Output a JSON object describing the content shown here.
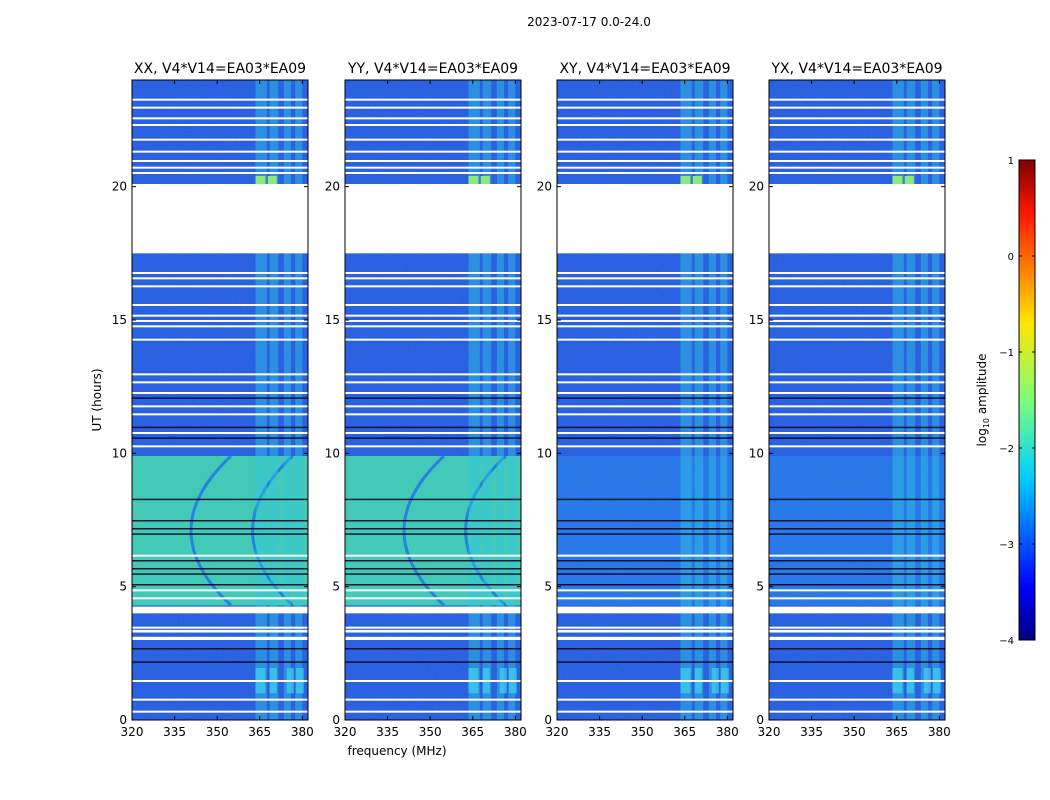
{
  "figure_title": "2023-07-17 0.0-24.0",
  "colors": {
    "background": "#ffffff",
    "frame": "#000000",
    "base_low": "#0a1fc8",
    "base_mid": "#1f5cf0",
    "band_bright": "#2ec8e0",
    "band_hot": "#6fe070",
    "bright_cyan": "#3fd4e8",
    "bright_green": "#8ee87a",
    "gap": "#ffffff",
    "dark_line": "#000014"
  },
  "chart_data": [
    {
      "type": "heatmap",
      "title": "XX, V4*V14=EA03*EA09",
      "xlabel": "",
      "ylabel": "UT (hours)",
      "xlim": [
        320,
        382
      ],
      "ylim": [
        0,
        24
      ],
      "x_ticks": [
        320,
        335,
        350,
        365,
        380
      ],
      "y_ticks": [
        0,
        5,
        10,
        15,
        20
      ],
      "bright_block_ut": [
        4.3,
        9.9
      ]
    },
    {
      "type": "heatmap",
      "title": "YY, V4*V14=EA03*EA09",
      "xlabel": "frequency (MHz)",
      "ylabel": "",
      "xlim": [
        320,
        382
      ],
      "ylim": [
        0,
        24
      ],
      "x_ticks": [
        320,
        335,
        350,
        365,
        380
      ],
      "y_ticks": [
        0,
        5,
        10,
        15,
        20
      ],
      "bright_block_ut": [
        4.3,
        9.9
      ]
    },
    {
      "type": "heatmap",
      "title": "XY, V4*V14=EA03*EA09",
      "xlabel": "",
      "ylabel": "",
      "xlim": [
        320,
        382
      ],
      "ylim": [
        0,
        24
      ],
      "x_ticks": [
        320,
        335,
        350,
        365,
        380
      ],
      "y_ticks": [
        0,
        5,
        10,
        15,
        20
      ],
      "bright_block_ut": [
        4.3,
        9.9
      ]
    },
    {
      "type": "heatmap",
      "title": "YX, V4*V14=EA03*EA09",
      "xlabel": "",
      "ylabel": "",
      "xlim": [
        320,
        382
      ],
      "ylim": [
        0,
        24
      ],
      "x_ticks": [
        320,
        335,
        350,
        365,
        380
      ],
      "y_ticks": [
        0,
        5,
        10,
        15,
        20
      ],
      "bright_block_ut": [
        4.3,
        9.9
      ]
    }
  ],
  "data_gaps_ut": [
    [
      17.5,
      20.1
    ],
    [
      4.0,
      4.25
    ],
    [
      3.0,
      3.12
    ],
    [
      3.28,
      3.38
    ]
  ],
  "rfi_channels_mhz": [
    [
      363.5,
      367.5
    ],
    [
      368.5,
      371.5
    ],
    [
      373.5,
      376.0
    ],
    [
      377.5,
      380.0
    ]
  ],
  "colorbar": {
    "label_main": "log",
    "label_sub": "10",
    "label_rest": " amplitude",
    "range": [
      -4,
      1
    ],
    "ticks": [
      1,
      0,
      -1,
      -2,
      -3,
      -4
    ],
    "tick_labels": [
      "1",
      "0",
      "−1",
      "−2",
      "−3",
      "−4"
    ]
  }
}
